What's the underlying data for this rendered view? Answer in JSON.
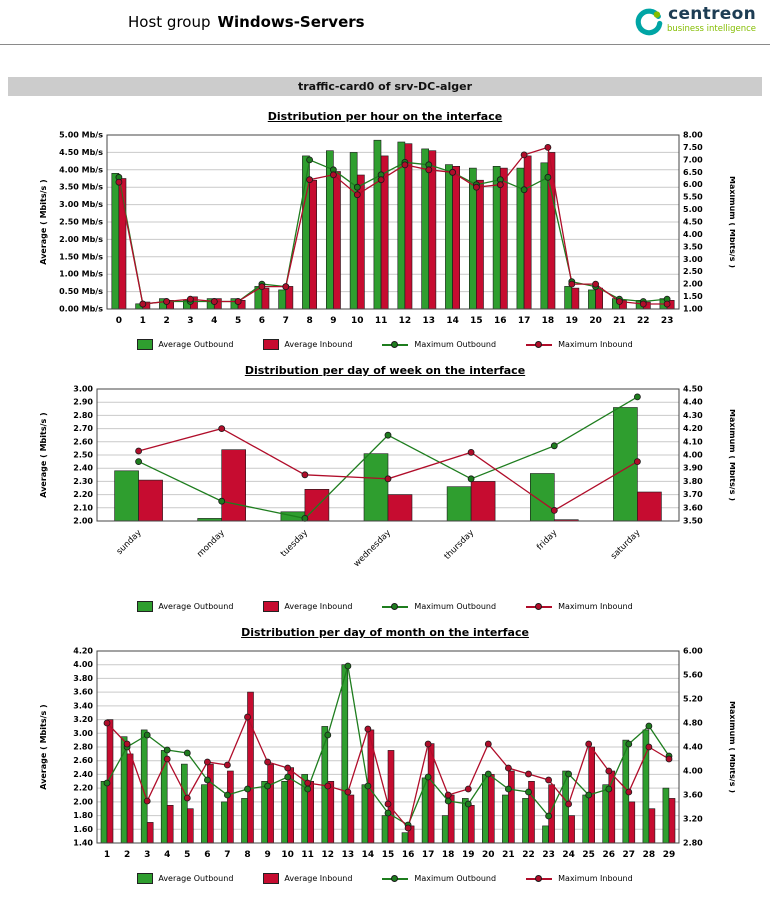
{
  "header": {
    "title_prefix": "Host group",
    "host_group": "Windows-Servers",
    "logo_text": "centreon",
    "logo_sub": "business intelligence"
  },
  "report": {
    "card_title": "traffic-card0 of srv-DC-alger"
  },
  "legend": {
    "avg_out": "Average Outbound",
    "avg_in": "Average Inbound",
    "max_out": "Maximum Outbound",
    "max_in": "Maximum Inbound"
  },
  "colors": {
    "outbound": "#2f9e2f",
    "inbound": "#c60c30",
    "outbound_line": "#1e7d1e",
    "inbound_line": "#b00d2a",
    "grid": "#c9c9c9",
    "bar_border": "#1a1a1a",
    "card_bg": "#cccccc",
    "logo_teal": "#00a5a5",
    "logo_green": "#84bd00",
    "logo_text_color": "#1d3d54"
  },
  "chart_data": [
    {
      "type": "bar",
      "title": "Distribution per hour on the interface",
      "categories": [
        "0",
        "1",
        "2",
        "3",
        "4",
        "5",
        "6",
        "7",
        "8",
        "9",
        "10",
        "11",
        "12",
        "13",
        "14",
        "15",
        "16",
        "17",
        "18",
        "19",
        "20",
        "21",
        "22",
        "23"
      ],
      "left_axis": {
        "label": "Average ( Mbits/s )",
        "min": 0,
        "max": 5,
        "step": 0.5,
        "decimals": 2,
        "tick_suffix": " Mb/s"
      },
      "right_axis": {
        "label": "Maximum ( Mbits/s )",
        "min": 1,
        "max": 8,
        "step": 0.5,
        "decimals": 2
      },
      "series": [
        {
          "name": "Average Outbound",
          "kind": "bar",
          "axis": "left",
          "values": [
            3.9,
            0.15,
            0.3,
            0.25,
            0.3,
            0.3,
            0.65,
            0.55,
            4.4,
            4.55,
            4.5,
            4.85,
            4.8,
            4.6,
            4.15,
            4.05,
            4.1,
            4.05,
            4.2,
            0.65,
            0.55,
            0.3,
            0.25,
            0.3
          ]
        },
        {
          "name": "Average Inbound",
          "kind": "bar",
          "axis": "left",
          "values": [
            3.75,
            0.2,
            0.25,
            0.35,
            0.3,
            0.25,
            0.6,
            0.65,
            3.7,
            3.95,
            3.85,
            4.4,
            4.75,
            4.55,
            4.1,
            3.7,
            4.05,
            4.4,
            4.5,
            0.6,
            0.6,
            0.25,
            0.2,
            0.25
          ]
        },
        {
          "name": "Maximum Outbound",
          "kind": "line",
          "axis": "right",
          "values": [
            6.3,
            1.2,
            1.3,
            1.3,
            1.3,
            1.3,
            2.0,
            1.9,
            7.0,
            6.6,
            5.9,
            6.4,
            6.9,
            6.8,
            6.5,
            6.0,
            6.2,
            5.8,
            6.3,
            2.1,
            1.9,
            1.4,
            1.3,
            1.4
          ]
        },
        {
          "name": "Maximum Inbound",
          "kind": "line",
          "axis": "right",
          "values": [
            6.1,
            1.2,
            1.3,
            1.4,
            1.3,
            1.3,
            1.9,
            1.9,
            6.2,
            6.4,
            5.6,
            6.2,
            6.8,
            6.6,
            6.5,
            5.9,
            6.0,
            7.2,
            7.5,
            2.0,
            2.0,
            1.3,
            1.2,
            1.2
          ]
        }
      ]
    },
    {
      "type": "bar",
      "title": "Distribution per day of week on the interface",
      "categories": [
        "sunday",
        "monday",
        "tuesday",
        "wednesday",
        "thursday",
        "friday",
        "saturday"
      ],
      "left_axis": {
        "label": "Average ( Mbits/s )",
        "min": 2.0,
        "max": 3.0,
        "step": 0.1,
        "decimals": 2,
        "tick_suffix": ""
      },
      "right_axis": {
        "label": "Maximum ( Mbits/s )",
        "min": 3.5,
        "max": 4.5,
        "step": 0.1,
        "decimals": 2
      },
      "series": [
        {
          "name": "Average Outbound",
          "kind": "bar",
          "axis": "left",
          "values": [
            2.38,
            2.02,
            2.07,
            2.51,
            2.26,
            2.36,
            2.86
          ]
        },
        {
          "name": "Average Inbound",
          "kind": "bar",
          "axis": "left",
          "values": [
            2.31,
            2.54,
            2.24,
            2.2,
            2.3,
            2.01,
            2.22
          ]
        },
        {
          "name": "Maximum Outbound",
          "kind": "line",
          "axis": "right",
          "values": [
            3.95,
            3.65,
            3.52,
            4.15,
            3.82,
            4.07,
            4.44
          ]
        },
        {
          "name": "Maximum Inbound",
          "kind": "line",
          "axis": "right",
          "values": [
            4.03,
            4.2,
            3.85,
            3.82,
            4.02,
            3.58,
            3.95
          ]
        }
      ]
    },
    {
      "type": "bar",
      "title": "Distribution per day of month on the interface",
      "categories": [
        "1",
        "2",
        "3",
        "4",
        "5",
        "6",
        "7",
        "8",
        "9",
        "10",
        "11",
        "12",
        "13",
        "14",
        "15",
        "16",
        "17",
        "18",
        "19",
        "20",
        "21",
        "22",
        "23",
        "24",
        "25",
        "26",
        "27",
        "28",
        "29"
      ],
      "left_axis": {
        "label": "Average ( Mbits/s )",
        "min": 1.4,
        "max": 4.2,
        "step": 0.2,
        "decimals": 2,
        "tick_suffix": ""
      },
      "right_axis": {
        "label": "Maximum ( Mbits/s )",
        "min": 2.8,
        "max": 6.0,
        "step": 0.4,
        "decimals": 2
      },
      "series": [
        {
          "name": "Average Outbound",
          "kind": "bar",
          "axis": "left",
          "values": [
            2.3,
            2.95,
            3.05,
            2.75,
            2.55,
            2.25,
            2.0,
            2.05,
            2.3,
            2.3,
            2.4,
            3.1,
            4.0,
            2.25,
            1.8,
            1.55,
            2.35,
            1.8,
            2.05,
            2.4,
            2.1,
            2.05,
            1.65,
            2.45,
            2.1,
            2.25,
            2.9,
            3.05,
            2.2
          ]
        },
        {
          "name": "Average Inbound",
          "kind": "bar",
          "axis": "left",
          "values": [
            3.2,
            2.7,
            1.7,
            1.95,
            1.9,
            2.55,
            2.45,
            3.6,
            2.55,
            2.5,
            2.3,
            2.3,
            2.1,
            3.05,
            2.75,
            1.65,
            2.85,
            2.1,
            1.95,
            2.4,
            2.45,
            2.3,
            2.25,
            1.8,
            2.8,
            2.45,
            2.0,
            1.9,
            2.05
          ]
        },
        {
          "name": "Maximum Outbound",
          "kind": "line",
          "axis": "right",
          "values": [
            3.8,
            4.4,
            4.6,
            4.35,
            4.3,
            3.85,
            3.6,
            3.7,
            3.75,
            3.9,
            3.7,
            4.6,
            5.75,
            3.75,
            3.3,
            3.1,
            3.9,
            3.5,
            3.45,
            3.95,
            3.7,
            3.65,
            3.25,
            3.95,
            3.6,
            3.7,
            4.45,
            4.75,
            4.25
          ]
        },
        {
          "name": "Maximum Inbound",
          "kind": "line",
          "axis": "right",
          "values": [
            4.8,
            4.45,
            3.5,
            4.2,
            3.55,
            4.15,
            4.1,
            4.9,
            4.15,
            4.05,
            3.8,
            3.75,
            3.65,
            4.7,
            3.45,
            3.05,
            4.45,
            3.6,
            3.7,
            4.45,
            4.05,
            3.95,
            3.85,
            3.45,
            4.45,
            4.0,
            3.65,
            4.4,
            4.2
          ]
        }
      ]
    }
  ]
}
